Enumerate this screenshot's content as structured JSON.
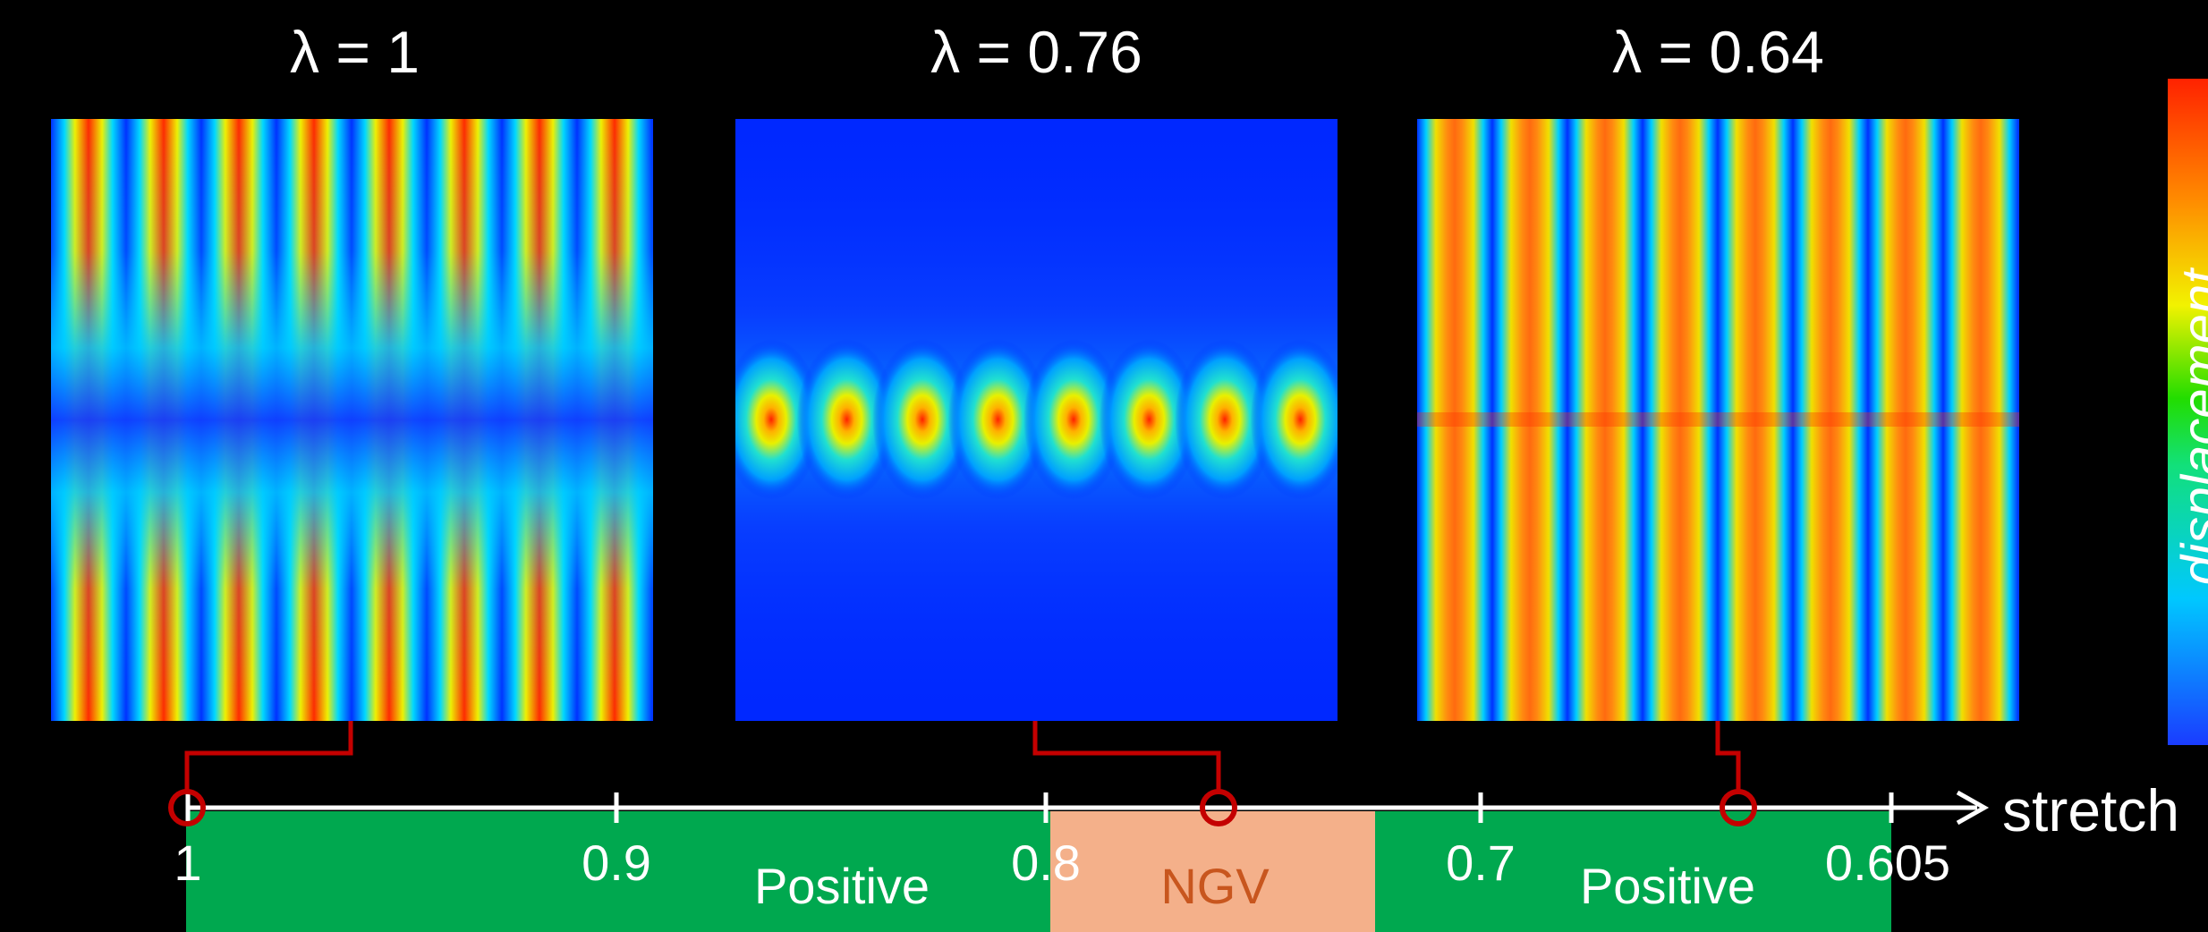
{
  "panels": [
    {
      "title": "λ = 1",
      "pattern": "vertical-lobes"
    },
    {
      "title": "λ = 0.76",
      "pattern": "localized-spots"
    },
    {
      "title": "λ = 0.64",
      "pattern": "vertical-stripes"
    }
  ],
  "colorbar": {
    "label": "displacement",
    "low_color": "#1a3cff",
    "high_color": "#ff2200"
  },
  "axis": {
    "label": "stretch",
    "ticks": [
      "1",
      "0.9",
      "0.8",
      "0.7",
      "0.605"
    ],
    "regions": [
      {
        "label": "Positive",
        "color": "#00a84f"
      },
      {
        "label": "NGV",
        "color": "#f4b08a",
        "text_color": "#c8561e"
      },
      {
        "label": "Positive",
        "color": "#00a84f"
      }
    ]
  },
  "colors": {
    "connector": "#c40000",
    "axis": "#ffffff"
  }
}
